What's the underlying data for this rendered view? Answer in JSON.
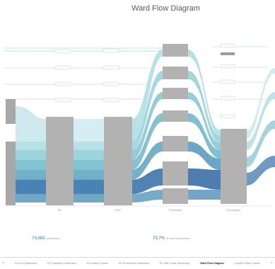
{
  "title": "Ward Flow Diagram",
  "colors": {
    "node": "#b2b2b2",
    "node_dark": "#a3a3a3",
    "flow_light": "#bfe6ea",
    "flow_mid": "#7cc4cf",
    "flow_dark": "#3f7fae",
    "flow_navy": "#2f5f95",
    "accent_text": "#5aa6b6"
  },
  "stats": [
    {
      "value": "74,483",
      "label": "admissions"
    },
    {
      "value": "73.7%",
      "label": "of total admissions"
    }
  ],
  "column_labels": [
    "",
    "ED",
    "AMU",
    "Discharge",
    "Discharged"
  ],
  "tabs": [
    "ED Live Dashboard",
    "ED Diagnosis Dashboard",
    "ED Activity Tracker",
    "ED Procedures Dashboard",
    "ED Wait Times Dashboard",
    "Ward Flow Diagram",
    "Length of Stay Tracker"
  ],
  "active_tab": "Ward Flow Diagram"
}
